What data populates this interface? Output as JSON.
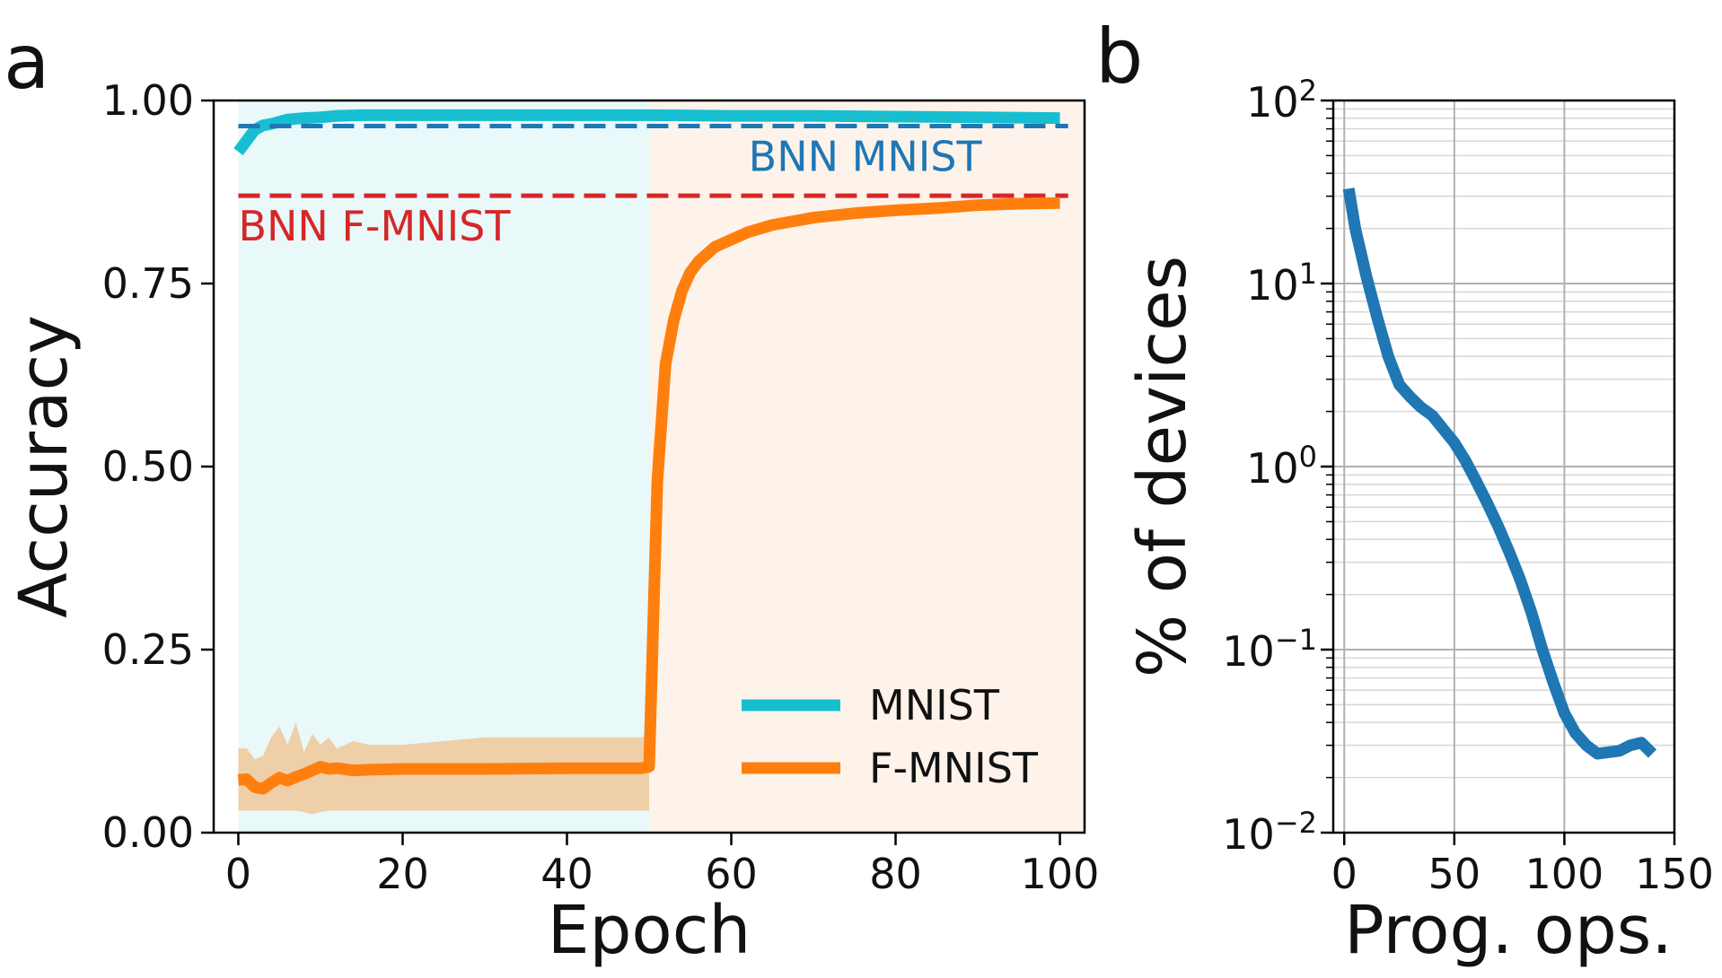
{
  "panel_a": {
    "label": "a",
    "x_tick_labels": [
      "0",
      "20",
      "40",
      "60",
      "80",
      "100"
    ],
    "y_tick_labels": [
      "0.00",
      "0.25",
      "0.50",
      "0.75",
      "1.00"
    ]
  },
  "panel_b": {
    "label": "b",
    "x_tick_labels": [
      "0",
      "50",
      "100",
      "150"
    ],
    "y_tick_bases": [
      "10",
      "10",
      "10",
      "10",
      "10"
    ],
    "y_tick_exponents": [
      "2",
      "1",
      "0",
      "−1",
      "−2"
    ]
  },
  "colors": {
    "mnist": "#17becf",
    "fmnist": "#ff7f0e",
    "fmnist_band": "#efcfa8",
    "bnn_mnist": "#1f77b4",
    "bnn_fmnist": "#d62728",
    "phase1_bg": "#e9f8f9",
    "phase2_bg": "#fef3ea",
    "devices_line": "#1f77b4"
  },
  "chart_data": [
    {
      "type": "line",
      "xlabel": "Epoch",
      "ylabel": "Accuracy",
      "xlim": [
        -3,
        103
      ],
      "ylim": [
        0.0,
        1.0
      ],
      "x_ticks": [
        0,
        20,
        40,
        60,
        80,
        100
      ],
      "y_ticks": [
        0.0,
        0.25,
        0.5,
        0.75,
        1.0
      ],
      "shaded_regions": [
        {
          "x_start": 0,
          "x_end": 50,
          "color_key": "phase1_bg"
        },
        {
          "x_start": 50,
          "x_end": 103,
          "color_key": "phase2_bg"
        }
      ],
      "series": [
        {
          "name": "MNIST",
          "color_key": "mnist",
          "x": [
            0,
            1,
            2,
            3,
            4,
            5,
            6,
            8,
            10,
            12,
            15,
            20,
            30,
            40,
            50,
            60,
            70,
            80,
            90,
            100
          ],
          "y": [
            0.93,
            0.945,
            0.96,
            0.966,
            0.968,
            0.971,
            0.974,
            0.976,
            0.977,
            0.979,
            0.98,
            0.98,
            0.98,
            0.98,
            0.98,
            0.979,
            0.979,
            0.978,
            0.977,
            0.976
          ]
        },
        {
          "name": "F-MNIST",
          "color_key": "fmnist",
          "x": [
            0,
            1,
            2,
            3,
            4,
            5,
            6,
            7,
            8,
            9,
            10,
            11,
            12,
            14,
            16,
            20,
            30,
            40,
            48,
            49,
            50,
            51,
            52,
            53,
            54,
            55,
            56,
            57,
            58,
            60,
            62,
            65,
            70,
            75,
            80,
            85,
            90,
            95,
            100
          ],
          "y": [
            0.072,
            0.073,
            0.062,
            0.06,
            0.068,
            0.075,
            0.071,
            0.076,
            0.08,
            0.085,
            0.09,
            0.087,
            0.088,
            0.085,
            0.086,
            0.087,
            0.087,
            0.088,
            0.088,
            0.088,
            0.09,
            0.48,
            0.64,
            0.7,
            0.74,
            0.765,
            0.78,
            0.79,
            0.8,
            0.81,
            0.82,
            0.83,
            0.84,
            0.846,
            0.85,
            0.853,
            0.857,
            0.859,
            0.86
          ],
          "band_lower": [
            0.03,
            0.03,
            0.03,
            0.03,
            0.03,
            0.03,
            0.03,
            0.03,
            0.028,
            0.025,
            0.028,
            0.03,
            0.03,
            0.03,
            0.03,
            0.03,
            0.03,
            0.03,
            0.03,
            0.03,
            0.03
          ],
          "band_upper": [
            0.115,
            0.115,
            0.1,
            0.105,
            0.13,
            0.145,
            0.12,
            0.15,
            0.11,
            0.135,
            0.12,
            0.13,
            0.115,
            0.125,
            0.12,
            0.12,
            0.13,
            0.13,
            0.13,
            0.13,
            0.135
          ]
        }
      ],
      "reference_lines": [
        {
          "name": "BNN MNIST",
          "y": 0.965,
          "color_key": "bnn_mnist",
          "style": "dashed",
          "label_anchor": "right, below line"
        },
        {
          "name": "BNN F-MNIST",
          "y": 0.87,
          "color_key": "bnn_fmnist",
          "style": "dashed",
          "label_anchor": "left, below line"
        }
      ],
      "legend": {
        "location": "lower-right",
        "entries": [
          "MNIST",
          "F-MNIST"
        ]
      }
    },
    {
      "type": "line",
      "xlabel": "Prog. ops.",
      "ylabel": "% of devices",
      "yscale": "log",
      "xlim": [
        -5,
        150
      ],
      "ylim": [
        0.01,
        100
      ],
      "x_ticks": [
        0,
        50,
        100,
        150
      ],
      "y_ticks": [
        0.01,
        0.1,
        1,
        10,
        100
      ],
      "grid": true,
      "series": [
        {
          "name": "devices",
          "color_key": "devices_line",
          "x": [
            2,
            5,
            10,
            15,
            20,
            25,
            30,
            35,
            40,
            45,
            50,
            55,
            60,
            65,
            70,
            75,
            80,
            85,
            90,
            95,
            100,
            105,
            110,
            115,
            120,
            125,
            130,
            135,
            140
          ],
          "y": [
            33,
            20,
            11,
            6.5,
            4.0,
            2.8,
            2.4,
            2.1,
            1.9,
            1.6,
            1.35,
            1.08,
            0.83,
            0.63,
            0.47,
            0.34,
            0.24,
            0.16,
            0.1,
            0.066,
            0.045,
            0.035,
            0.03,
            0.027,
            0.0275,
            0.028,
            0.03,
            0.031,
            0.027
          ]
        }
      ]
    }
  ]
}
